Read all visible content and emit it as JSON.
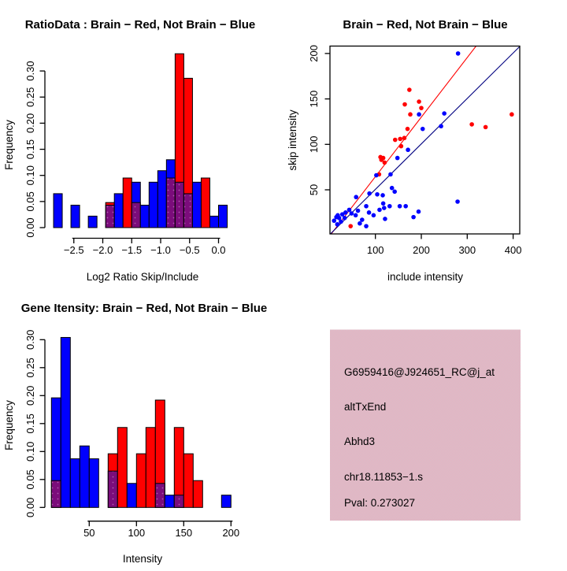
{
  "figure": {
    "background": "#ffffff"
  },
  "colors": {
    "red": "#ff0000",
    "blue": "#0000ff",
    "overlap_purple": "#7b0c7b",
    "overlap_dot": "#ae58ae",
    "fit_line_red": "#ff0000",
    "fit_line_navy": "#000080",
    "darkred": "#9b1b1b",
    "black": "#000000",
    "pink_a": "#f2a9bd",
    "pink_b": "#cdc7cd"
  },
  "chart_data": [
    {
      "id": "ratio_hist",
      "type": "bar",
      "subtype": "overlaid-histogram",
      "title": "RatioData : Brain − Red, Not Brain − Blue",
      "xlabel": "Log2 Ratio Skip/Include",
      "ylabel": "Frequency",
      "legend": "Brain = red, Not Brain = blue, overlap = purple",
      "xlim": [
        -2.9,
        0.2
      ],
      "ylim": [
        0,
        0.333
      ],
      "grid": false,
      "x_ticks": [
        -2.5,
        -2.0,
        -1.5,
        -1.0,
        -0.5,
        0.0
      ],
      "x_tick_labels": [
        "−2.5",
        "−2.0",
        "−1.5",
        "−1.0",
        "−0.5",
        "0.0"
      ],
      "y_ticks": [
        0,
        0.05,
        0.1,
        0.15,
        0.2,
        0.25,
        0.3
      ],
      "y_tick_labels": [
        "0.00",
        "0.05",
        "0.10",
        "0.15",
        "0.20",
        "0.25",
        "0.30"
      ],
      "bin_width": 0.15,
      "bars": [
        {
          "x": -2.85,
          "blue": 0.065,
          "red": 0
        },
        {
          "x": -2.55,
          "blue": 0.043,
          "red": 0
        },
        {
          "x": -2.25,
          "blue": 0.022,
          "red": 0
        },
        {
          "x": -1.95,
          "blue": 0.043,
          "red": 0.048
        },
        {
          "x": -1.8,
          "blue": 0.065,
          "red": 0
        },
        {
          "x": -1.65,
          "blue": 0,
          "red": 0.095
        },
        {
          "x": -1.5,
          "blue": 0.087,
          "red": 0.048
        },
        {
          "x": -1.35,
          "blue": 0.043,
          "red": 0
        },
        {
          "x": -1.2,
          "blue": 0.087,
          "red": 0
        },
        {
          "x": -1.05,
          "blue": 0.109,
          "red": 0
        },
        {
          "x": -0.9,
          "blue": 0.13,
          "red": 0.095
        },
        {
          "x": -0.75,
          "blue": 0.087,
          "red": 0.333
        },
        {
          "x": -0.6,
          "blue": 0.065,
          "red": 0.286
        },
        {
          "x": -0.45,
          "blue": 0.087,
          "red": 0
        },
        {
          "x": -0.3,
          "blue": 0,
          "red": 0.095
        },
        {
          "x": -0.15,
          "blue": 0.022,
          "red": 0
        },
        {
          "x": 0.0,
          "blue": 0.043,
          "red": 0
        }
      ]
    },
    {
      "id": "scatter",
      "type": "scatter",
      "title": "Brain − Red, Not Brain − Blue",
      "xlabel": "include intensity",
      "ylabel": "skip intensity",
      "xlim": [
        0,
        414
      ],
      "ylim": [
        0,
        208
      ],
      "grid": false,
      "x_ticks": [
        100,
        200,
        300,
        400
      ],
      "y_ticks": [
        50,
        100,
        150,
        200
      ],
      "series": [
        {
          "name": "Brain (red)",
          "color_key": "red",
          "points": [
            [
              46,
              10
            ],
            [
              108,
              67
            ],
            [
              111,
              86
            ],
            [
              113,
              83
            ],
            [
              117,
              85
            ],
            [
              120,
              80
            ],
            [
              143,
              105
            ],
            [
              154,
              106
            ],
            [
              156,
              98
            ],
            [
              163,
              107
            ],
            [
              164,
              144
            ],
            [
              170,
              117
            ],
            [
              174,
              160
            ],
            [
              176,
              133
            ],
            [
              195,
              147
            ],
            [
              200,
              140
            ],
            [
              310,
              122
            ],
            [
              340,
              119
            ],
            [
              397,
              133
            ]
          ]
        },
        {
          "name": "Not Brain (blue)",
          "color_key": "blue",
          "points": [
            [
              10,
              16
            ],
            [
              15,
              20
            ],
            [
              17,
              12
            ],
            [
              18,
              22
            ],
            [
              21,
              19
            ],
            [
              25,
              15
            ],
            [
              28,
              23
            ],
            [
              33,
              19
            ],
            [
              35,
              25
            ],
            [
              43,
              28
            ],
            [
              48,
              24
            ],
            [
              57,
              22
            ],
            [
              58,
              42
            ],
            [
              62,
              27
            ],
            [
              66,
              13
            ],
            [
              71,
              17
            ],
            [
              80,
              10
            ],
            [
              80,
              32
            ],
            [
              86,
              25
            ],
            [
              87,
              46
            ],
            [
              96,
              22
            ],
            [
              102,
              66
            ],
            [
              104,
              45
            ],
            [
              109,
              28
            ],
            [
              116,
              44
            ],
            [
              117,
              35
            ],
            [
              119,
              30
            ],
            [
              121,
              18
            ],
            [
              131,
              32
            ],
            [
              133,
              67
            ],
            [
              136,
              52
            ],
            [
              142,
              48
            ],
            [
              148,
              85
            ],
            [
              153,
              32
            ],
            [
              166,
              32
            ],
            [
              171,
              94
            ],
            [
              183,
              20
            ],
            [
              194,
              26
            ],
            [
              195,
              133
            ],
            [
              203,
              117
            ],
            [
              243,
              120
            ],
            [
              250,
              134
            ],
            [
              279,
              37
            ],
            [
              280,
              200
            ]
          ]
        }
      ],
      "lines": [
        {
          "name": "brain fit line",
          "color_key": "fit_line_red",
          "slope": 0.655,
          "intercept": -1
        },
        {
          "name": "not-brain fit line",
          "color_key": "fit_line_navy",
          "slope": 0.5,
          "intercept": 0.5
        }
      ]
    },
    {
      "id": "gene_hist",
      "type": "bar",
      "subtype": "overlaid-histogram",
      "title": "Gene Itensity: Brain − Red, Not Brain − Blue",
      "xlabel": "Intensity",
      "ylabel": "Frequency",
      "legend": "Brain = red, Not Brain = blue, overlap = purple",
      "xlim": [
        10,
        200
      ],
      "ylim": [
        0,
        0.304
      ],
      "grid": false,
      "x_ticks": [
        50,
        100,
        150,
        200
      ],
      "x_tick_labels": [
        "50",
        "100",
        "150",
        "200"
      ],
      "y_ticks": [
        0,
        0.05,
        0.1,
        0.15,
        0.2,
        0.25,
        0.3
      ],
      "y_tick_labels": [
        "0.00",
        "0.05",
        "0.10",
        "0.15",
        "0.20",
        "0.25",
        "0.30"
      ],
      "bin_width": 10,
      "bars": [
        {
          "x": 10,
          "blue": 0.196,
          "red": 0.048
        },
        {
          "x": 20,
          "blue": 0.304,
          "red": 0
        },
        {
          "x": 30,
          "blue": 0.087,
          "red": 0
        },
        {
          "x": 40,
          "blue": 0.11,
          "red": 0
        },
        {
          "x": 50,
          "blue": 0.087,
          "red": 0
        },
        {
          "x": 70,
          "blue": 0.065,
          "red": 0.096
        },
        {
          "x": 80,
          "blue": 0,
          "red": 0.143
        },
        {
          "x": 90,
          "blue": 0.043,
          "red": 0
        },
        {
          "x": 100,
          "blue": 0,
          "red": 0.096
        },
        {
          "x": 110,
          "blue": 0,
          "red": 0.143
        },
        {
          "x": 120,
          "blue": 0.043,
          "red": 0.192
        },
        {
          "x": 130,
          "blue": 0.022,
          "red": 0
        },
        {
          "x": 140,
          "blue": 0.022,
          "red": 0.143
        },
        {
          "x": 150,
          "blue": 0,
          "red": 0.096
        },
        {
          "x": 160,
          "blue": 0,
          "red": 0.048
        },
        {
          "x": 190,
          "blue": 0.022,
          "red": 0
        }
      ]
    },
    {
      "id": "info_box",
      "type": "text",
      "lines": [
        {
          "text": "G6959416@J924651_RC@j_at",
          "color_key": "black"
        },
        {
          "text": "altTxEnd",
          "color_key": "black"
        },
        {
          "text": "Abhd3",
          "color_key": "black"
        },
        {
          "text": "chr18.11853−1.s",
          "color_key": "black"
        },
        {
          "text": "Pval: 0.273027",
          "color_key": "darkred"
        }
      ]
    }
  ]
}
